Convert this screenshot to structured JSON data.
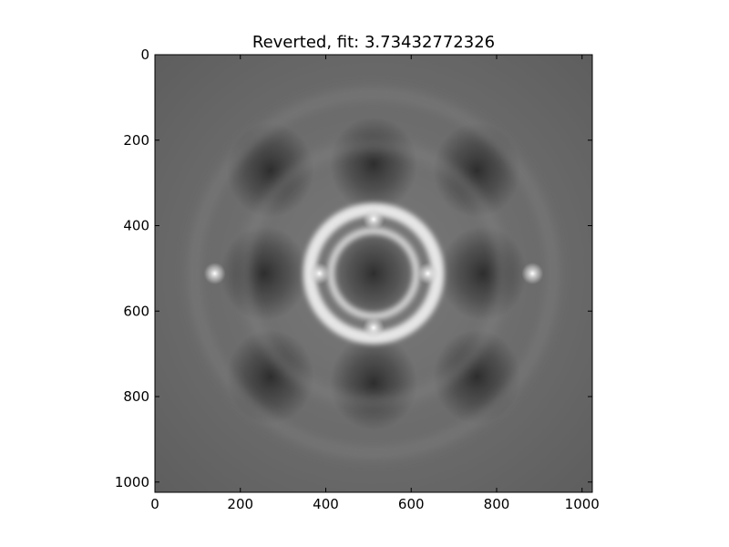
{
  "chart_data": {
    "type": "heatmap",
    "title": "Reverted, fit: 3.73432772326",
    "xlabel": "",
    "ylabel": "",
    "xlim": [
      0,
      1024
    ],
    "ylim": [
      1024,
      0
    ],
    "grid": false,
    "colormap": "gray",
    "x_ticks": [
      0,
      200,
      400,
      600,
      800,
      1000
    ],
    "x_tick_labels": [
      "0",
      "200",
      "400",
      "600",
      "800",
      "1000"
    ],
    "y_ticks": [
      0,
      200,
      400,
      600,
      800,
      1000
    ],
    "y_tick_labels": [
      "0",
      "200",
      "400",
      "600",
      "800",
      "1000"
    ],
    "image_size": [
      1024,
      1024
    ],
    "pattern": {
      "background_gray": "#6e6e6e",
      "center": [
        512,
        512
      ],
      "rings": [
        {
          "center": [
            512,
            512
          ],
          "radius": 150,
          "intensity": "bright"
        },
        {
          "center": [
            512,
            512
          ],
          "radius": 100,
          "intensity": "bright"
        }
      ],
      "dark_lobes": [
        [
          512,
          512
        ],
        [
          256,
          512
        ],
        [
          768,
          512
        ],
        [
          512,
          256
        ],
        [
          512,
          768
        ],
        [
          270,
          270
        ],
        [
          754,
          270
        ],
        [
          270,
          754
        ],
        [
          754,
          754
        ]
      ],
      "bright_points": [
        [
          385,
          512
        ],
        [
          639,
          512
        ],
        [
          512,
          385
        ],
        [
          512,
          639
        ],
        [
          140,
          512
        ],
        [
          884,
          512
        ]
      ]
    }
  }
}
